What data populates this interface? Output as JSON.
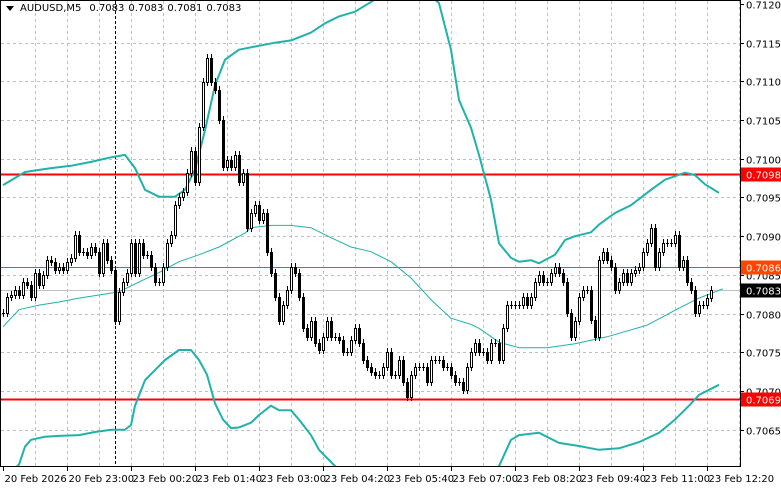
{
  "header": {
    "symbol": "AUDUSD,M5",
    "open": "0.7083",
    "high": "0.7083",
    "low": "0.7081",
    "close": "0.7083"
  },
  "colors": {
    "bull_fill": "#ffffff",
    "bear_fill": "#000000",
    "candle_outline": "#000000",
    "bands": "#20b2aa",
    "grid": "#c0c0c0",
    "bid_line": "#c0c0c0"
  },
  "chart_data": {
    "type": "candlestick",
    "title": "AUDUSD,M5",
    "timeframe_minutes": 5,
    "ylim": [
      0.70615,
      0.71205
    ],
    "grid": true,
    "y_ticks": [
      "0.7120",
      "0.7115",
      "0.7110",
      "0.7105",
      "0.7100",
      "0.7095",
      "0.7090",
      "0.7085",
      "0.7080",
      "0.7075",
      "0.7070",
      "0.7065"
    ],
    "x_tick_labels": [
      "20 Feb 2026",
      "20 Feb 23:00",
      "23 Feb 00:20",
      "23 Feb 01:40",
      "23 Feb 03:00",
      "23 Feb 04:20",
      "23 Feb 05:40",
      "23 Feb 07:00",
      "23 Feb 08:20",
      "23 Feb 09:40",
      "23 Feb 11:00",
      "23 Feb 12:20"
    ],
    "x_tick_bars": [
      0,
      16,
      32,
      48,
      64,
      80,
      96,
      112,
      128,
      144,
      160,
      176
    ],
    "close": [
      0.70801,
      0.70821,
      0.70824,
      0.7083,
      0.70824,
      0.70841,
      0.70837,
      0.70821,
      0.70852,
      0.70837,
      0.7085,
      0.70869,
      0.70867,
      0.70856,
      0.7086,
      0.70856,
      0.70867,
      0.70872,
      0.70902,
      0.7088,
      0.7088,
      0.70876,
      0.70886,
      0.7088,
      0.70852,
      0.70891,
      0.70869,
      0.70856,
      0.70791,
      0.70828,
      0.70841,
      0.70852,
      0.70891,
      0.70852,
      0.70891,
      0.70876,
      0.70876,
      0.7086,
      0.70841,
      0.70841,
      0.7086,
      0.70891,
      0.70902,
      0.7094,
      0.70951,
      0.70957,
      0.70982,
      0.7101,
      0.7097,
      0.71041,
      0.71099,
      0.7113,
      0.71099,
      0.71089,
      0.7105,
      0.70989,
      0.70998,
      0.70989,
      0.71005,
      0.7097,
      0.70982,
      0.70911,
      0.7093,
      0.7094,
      0.70921,
      0.7093,
      0.7088,
      0.70852,
      0.70821,
      0.70791,
      0.70811,
      0.7083,
      0.7086,
      0.70852,
      0.70821,
      0.70781,
      0.7077,
      0.70791,
      0.70762,
      0.70753,
      0.7077,
      0.70791,
      0.7077,
      0.7077,
      0.70766,
      0.7075,
      0.7075,
      0.70766,
      0.70781,
      0.70762,
      0.7074,
      0.70731,
      0.70725,
      0.70721,
      0.70721,
      0.70731,
      0.7075,
      0.70721,
      0.70721,
      0.7074,
      0.70712,
      0.70692,
      0.70721,
      0.70731,
      0.70731,
      0.70731,
      0.70712,
      0.7074,
      0.7074,
      0.7074,
      0.70731,
      0.70731,
      0.70721,
      0.70712,
      0.70712,
      0.70701,
      0.70731,
      0.7075,
      0.70762,
      0.7075,
      0.7075,
      0.7074,
      0.70762,
      0.70762,
      0.7074,
      0.70781,
      0.70811,
      0.70811,
      0.70811,
      0.70811,
      0.70821,
      0.70811,
      0.70821,
      0.70841,
      0.7085,
      0.70841,
      0.70841,
      0.70852,
      0.7086,
      0.70852,
      0.70841,
      0.70801,
      0.7077,
      0.70791,
      0.70821,
      0.7083,
      0.7083,
      0.70792,
      0.7077,
      0.70869,
      0.7088,
      0.70869,
      0.7086,
      0.7083,
      0.70841,
      0.70852,
      0.70841,
      0.70852,
      0.70856,
      0.7086,
      0.7088,
      0.70891,
      0.70911,
      0.7086,
      0.7088,
      0.70891,
      0.70891,
      0.70891,
      0.70902,
      0.7086,
      0.70869,
      0.70841,
      0.7083,
      0.70801,
      0.70811,
      0.70811,
      0.7082,
      0.7083
    ],
    "bollinger": {
      "upper": [
        [
          0,
          0.70966
        ],
        [
          5.5,
          0.70983
        ],
        [
          12,
          0.70988
        ],
        [
          17,
          0.70991
        ],
        [
          22,
          0.70996
        ],
        [
          27,
          0.71002
        ],
        [
          30.5,
          0.71005
        ],
        [
          33,
          0.70988
        ],
        [
          35.5,
          0.7096
        ],
        [
          39,
          0.70951
        ],
        [
          43,
          0.70951
        ],
        [
          45.5,
          0.7096
        ],
        [
          48,
          0.70986
        ],
        [
          50.5,
          0.71037
        ],
        [
          53,
          0.71095
        ],
        [
          55.5,
          0.71128
        ],
        [
          59,
          0.71141
        ],
        [
          62,
          0.71144
        ],
        [
          68,
          0.7115
        ],
        [
          72,
          0.71153
        ],
        [
          77,
          0.71163
        ],
        [
          80.5,
          0.71175
        ],
        [
          84,
          0.71184
        ],
        [
          88,
          0.7119
        ],
        [
          91.5,
          0.71201
        ],
        [
          99,
          0.71225
        ],
        [
          104,
          0.71225
        ],
        [
          109,
          0.71201
        ],
        [
          112,
          0.71141
        ],
        [
          114,
          0.71076
        ],
        [
          117,
          0.7104
        ],
        [
          119,
          0.71005
        ],
        [
          122,
          0.70947
        ],
        [
          124,
          0.70891
        ],
        [
          127,
          0.70872
        ],
        [
          129,
          0.70867
        ],
        [
          132,
          0.70869
        ],
        [
          134,
          0.70865
        ],
        [
          138,
          0.70876
        ],
        [
          140.5,
          0.70895
        ],
        [
          143,
          0.709
        ],
        [
          147,
          0.70905
        ],
        [
          149,
          0.70915
        ],
        [
          153,
          0.7093
        ],
        [
          157,
          0.7094
        ],
        [
          162,
          0.7096
        ],
        [
          165.5,
          0.70973
        ],
        [
          170.5,
          0.70982
        ],
        [
          173,
          0.70979
        ],
        [
          175.5,
          0.70967
        ],
        [
          179,
          0.70956
        ]
      ],
      "middle": [
        [
          0,
          0.70783
        ],
        [
          4,
          0.70805
        ],
        [
          9,
          0.70811
        ],
        [
          14,
          0.70815
        ],
        [
          19,
          0.7082
        ],
        [
          24,
          0.70824
        ],
        [
          29,
          0.70828
        ],
        [
          34,
          0.70841
        ],
        [
          39,
          0.70853
        ],
        [
          44,
          0.70867
        ],
        [
          49,
          0.70876
        ],
        [
          54,
          0.70886
        ],
        [
          60.5,
          0.70904
        ],
        [
          62,
          0.70911
        ],
        [
          67,
          0.70914
        ],
        [
          72,
          0.70914
        ],
        [
          77,
          0.70911
        ],
        [
          82,
          0.70898
        ],
        [
          87,
          0.70886
        ],
        [
          92,
          0.7088
        ],
        [
          97,
          0.70867
        ],
        [
          102,
          0.70846
        ],
        [
          107,
          0.70818
        ],
        [
          112,
          0.70794
        ],
        [
          117,
          0.70786
        ],
        [
          119,
          0.70781
        ],
        [
          124,
          0.70763
        ],
        [
          129,
          0.70756
        ],
        [
          136,
          0.70756
        ],
        [
          143,
          0.70761
        ],
        [
          151,
          0.7077
        ],
        [
          161,
          0.70785
        ],
        [
          169,
          0.70807
        ],
        [
          174,
          0.7082
        ],
        [
          180,
          0.70832
        ]
      ],
      "lower": [
        [
          0,
          0.70585
        ],
        [
          4,
          0.70605
        ],
        [
          5.5,
          0.70628
        ],
        [
          7,
          0.70637
        ],
        [
          10.5,
          0.70641
        ],
        [
          14,
          0.70642
        ],
        [
          19,
          0.70643
        ],
        [
          23,
          0.70647
        ],
        [
          27,
          0.7065
        ],
        [
          30.5,
          0.7065
        ],
        [
          32,
          0.70656
        ],
        [
          33,
          0.70681
        ],
        [
          35.5,
          0.70714
        ],
        [
          38,
          0.70727
        ],
        [
          40.5,
          0.7074
        ],
        [
          44,
          0.70753
        ],
        [
          47,
          0.70753
        ],
        [
          49,
          0.7074
        ],
        [
          51,
          0.70721
        ],
        [
          53,
          0.70684
        ],
        [
          55,
          0.70663
        ],
        [
          57,
          0.70652
        ],
        [
          59,
          0.70653
        ],
        [
          62,
          0.70659
        ],
        [
          64,
          0.70669
        ],
        [
          67,
          0.70681
        ],
        [
          69,
          0.70675
        ],
        [
          72,
          0.70675
        ],
        [
          74,
          0.70663
        ],
        [
          77,
          0.70643
        ],
        [
          79,
          0.70624
        ],
        [
          83,
          0.70603
        ],
        [
          89,
          0.7057
        ],
        [
          122,
          0.7057
        ],
        [
          124,
          0.70603
        ],
        [
          127,
          0.70637
        ],
        [
          129,
          0.70643
        ],
        [
          134,
          0.70646
        ],
        [
          139,
          0.70633
        ],
        [
          144,
          0.70629
        ],
        [
          149,
          0.70624
        ],
        [
          154,
          0.70626
        ],
        [
          159,
          0.70634
        ],
        [
          164,
          0.70646
        ],
        [
          168,
          0.70663
        ],
        [
          171.5,
          0.70681
        ],
        [
          174,
          0.70695
        ],
        [
          179,
          0.70708
        ]
      ]
    },
    "levels": [
      {
        "label": "0.7098",
        "price": 0.7098,
        "color": "#ff0000",
        "width": 2
      },
      {
        "label": "0.7086",
        "price": 0.7086,
        "color": "#ff4500",
        "width": 1
      },
      {
        "label": "0.7069",
        "price": 0.7069,
        "color": "#ff0000",
        "width": 2
      }
    ],
    "current_price": {
      "label": "0.7083",
      "price": 0.7083,
      "color": "#000000"
    },
    "separator_bar": 28
  }
}
